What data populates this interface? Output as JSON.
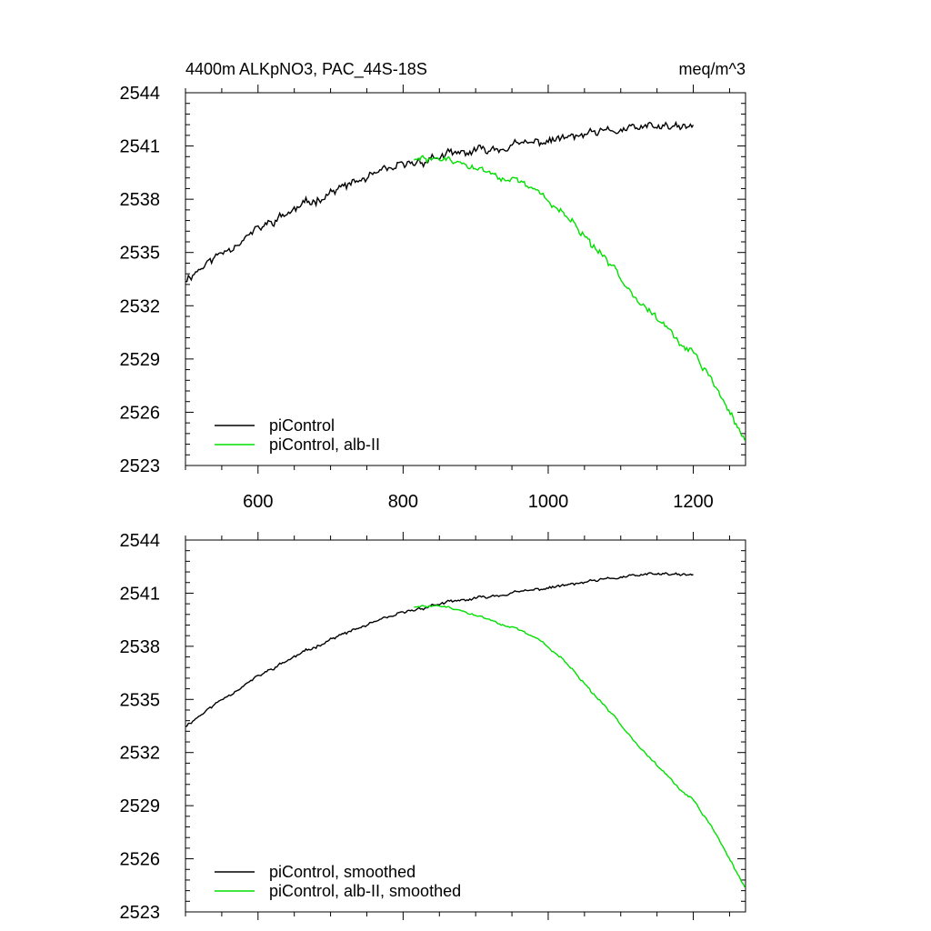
{
  "figure": {
    "title_left": "4400m ALKpNO3, PAC_44S-18S",
    "title_right": "meq/m^3"
  },
  "chart_data": [
    {
      "type": "line",
      "title": "4400m ALKpNO3, PAC_44S-18S",
      "units": "meq/m^3",
      "xlabel": "",
      "ylabel": "",
      "xlim": [
        500,
        1272
      ],
      "ylim": [
        2523,
        2544
      ],
      "xticks": [
        600,
        800,
        1000,
        1200
      ],
      "yticks": [
        2523,
        2526,
        2529,
        2532,
        2535,
        2538,
        2541,
        2544
      ],
      "show_xtick_labels": true,
      "legend_position": "bottom-left",
      "series": [
        {
          "name": "piControl",
          "color": "#000000",
          "noise": 0.35,
          "seed": 11,
          "x": [
            500,
            550,
            600,
            650,
            700,
            750,
            800,
            850,
            900,
            950,
            1000,
            1050,
            1100,
            1150,
            1200
          ],
          "y": [
            2533.5,
            2535.0,
            2536.3,
            2537.4,
            2538.4,
            2539.2,
            2539.9,
            2540.4,
            2540.7,
            2541.0,
            2541.3,
            2541.6,
            2541.9,
            2542.1,
            2542.0
          ]
        },
        {
          "name": "piControl, alb-II",
          "color": "#00e000",
          "noise": 0.3,
          "seed": 29,
          "x": [
            815,
            850,
            880,
            920,
            960,
            990,
            1020,
            1060,
            1100,
            1140,
            1180,
            1200,
            1230,
            1272
          ],
          "y": [
            2540.2,
            2540.3,
            2540.0,
            2539.5,
            2538.9,
            2538.3,
            2537.3,
            2535.4,
            2533.6,
            2531.7,
            2530.0,
            2529.3,
            2527.5,
            2524.3
          ]
        }
      ]
    },
    {
      "type": "line",
      "title": "",
      "xlabel": "",
      "ylabel": "",
      "xlim": [
        500,
        1272
      ],
      "ylim": [
        2523,
        2544
      ],
      "xticks": [
        600,
        800,
        1000,
        1200
      ],
      "yticks": [
        2523,
        2526,
        2529,
        2532,
        2535,
        2538,
        2541,
        2544
      ],
      "show_xtick_labels": false,
      "legend_position": "bottom-left",
      "series": [
        {
          "name": "piControl, smoothed",
          "color": "#000000",
          "noise": 0.12,
          "seed": 11,
          "x": [
            500,
            550,
            600,
            650,
            700,
            750,
            800,
            850,
            900,
            950,
            1000,
            1050,
            1100,
            1150,
            1200
          ],
          "y": [
            2533.5,
            2535.0,
            2536.3,
            2537.4,
            2538.4,
            2539.2,
            2539.9,
            2540.4,
            2540.7,
            2541.0,
            2541.3,
            2541.6,
            2541.9,
            2542.1,
            2542.0
          ]
        },
        {
          "name": "piControl, alb-II, smoothed",
          "color": "#00e000",
          "noise": 0.1,
          "seed": 29,
          "x": [
            815,
            850,
            880,
            920,
            960,
            990,
            1020,
            1060,
            1100,
            1140,
            1180,
            1200,
            1230,
            1272
          ],
          "y": [
            2540.2,
            2540.3,
            2540.0,
            2539.5,
            2538.9,
            2538.3,
            2537.3,
            2535.4,
            2533.6,
            2531.7,
            2530.0,
            2529.3,
            2527.5,
            2524.3
          ]
        }
      ]
    }
  ]
}
